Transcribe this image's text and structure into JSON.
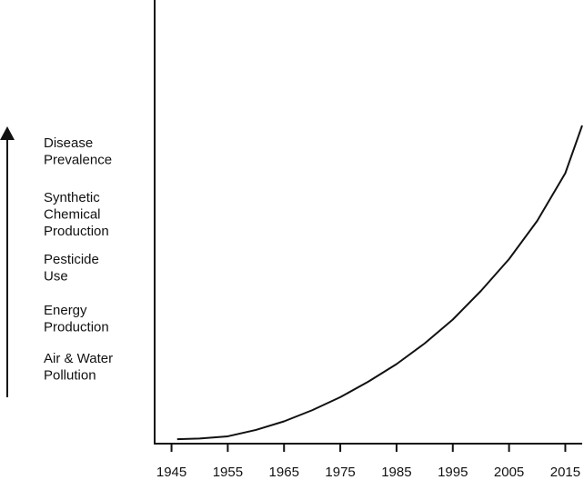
{
  "chart_data": {
    "type": "line",
    "x": [
      1946,
      1950,
      1955,
      1960,
      1965,
      1970,
      1975,
      1980,
      1985,
      1990,
      1995,
      2000,
      2005,
      2010,
      2015,
      2018
    ],
    "series": [
      {
        "color": "#111111",
        "values": [
          1.4,
          1.6,
          2.3,
          4.3,
          7,
          10.5,
          14.6,
          19.5,
          25,
          31.5,
          39,
          48,
          58,
          70,
          85,
          100
        ]
      }
    ],
    "xlim": [
      1942,
      2018
    ],
    "xticks": [
      1945,
      1955,
      1965,
      1975,
      1985,
      1995,
      2005,
      2015
    ],
    "ylim": [
      0,
      100
    ],
    "y_indicators": [
      [
        "Disease",
        "Prevalence"
      ],
      [
        "Synthetic",
        "Chemical",
        "Production"
      ],
      [
        "Pesticide",
        "Use"
      ],
      [
        "Energy",
        "Production"
      ],
      [
        "Air & Water",
        "Pollution"
      ]
    ]
  }
}
